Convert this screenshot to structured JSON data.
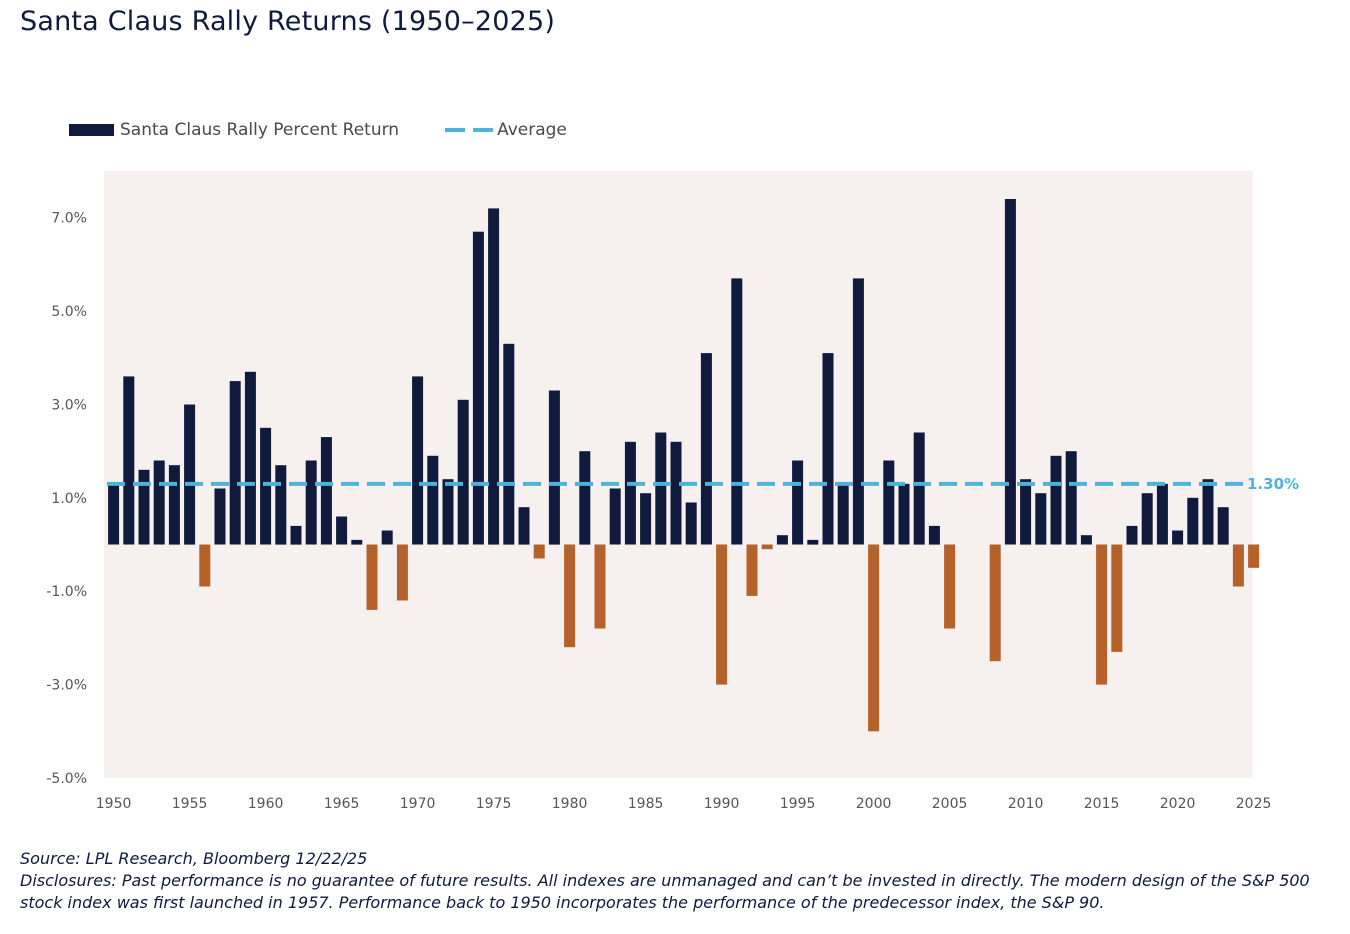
{
  "title": "Santa Claus Rally Returns (1950–2025)",
  "legend": {
    "bars": "Santa Claus Rally Percent Return",
    "average": "Average"
  },
  "colors": {
    "positive": "#0f1a3d",
    "negative": "#b5612a",
    "average": "#4fb3d9",
    "plot_bg": "#f6f0ef"
  },
  "chart_data": {
    "type": "bar",
    "title": "Santa Claus Rally Returns (1950–2025)",
    "x": [
      1950,
      1951,
      1952,
      1953,
      1954,
      1955,
      1956,
      1957,
      1958,
      1959,
      1960,
      1961,
      1962,
      1963,
      1964,
      1965,
      1966,
      1967,
      1968,
      1969,
      1970,
      1971,
      1972,
      1973,
      1974,
      1975,
      1976,
      1977,
      1978,
      1979,
      1980,
      1981,
      1982,
      1983,
      1984,
      1985,
      1986,
      1987,
      1988,
      1989,
      1990,
      1991,
      1992,
      1993,
      1994,
      1995,
      1996,
      1997,
      1998,
      1999,
      2000,
      2001,
      2002,
      2003,
      2004,
      2005,
      2006,
      2007,
      2008,
      2009,
      2010,
      2011,
      2012,
      2013,
      2014,
      2015,
      2016,
      2017,
      2018,
      2019,
      2020,
      2021,
      2022,
      2023,
      2024,
      2025
    ],
    "series": [
      {
        "name": "Santa Claus Rally Percent Return",
        "values": [
          1.3,
          3.6,
          1.6,
          1.8,
          1.7,
          3.0,
          -0.9,
          1.2,
          3.5,
          3.7,
          2.5,
          1.7,
          0.4,
          1.8,
          2.3,
          0.6,
          0.1,
          -1.4,
          0.3,
          -1.2,
          3.6,
          1.9,
          1.4,
          3.1,
          6.7,
          7.2,
          4.3,
          0.8,
          -0.3,
          3.3,
          -2.2,
          2.0,
          -1.8,
          1.2,
          2.2,
          1.1,
          2.4,
          2.2,
          0.9,
          4.1,
          -3.0,
          5.7,
          -1.1,
          -0.1,
          0.2,
          1.8,
          0.1,
          4.1,
          1.3,
          5.7,
          -4.0,
          1.8,
          1.3,
          2.4,
          0.4,
          -1.8,
          0.0,
          0.0,
          -2.5,
          7.4,
          1.4,
          1.1,
          1.9,
          2.0,
          0.2,
          -3.0,
          -2.3,
          0.4,
          1.1,
          1.3,
          0.3,
          1.0,
          1.4,
          0.8,
          -0.9,
          -0.5
        ]
      }
    ],
    "average": 1.3,
    "average_label": "1.30%",
    "ylim": [
      -5.0,
      8.0
    ],
    "yticks": [
      -5.0,
      -3.0,
      -1.0,
      1.0,
      3.0,
      5.0,
      7.0
    ],
    "ytick_labels": [
      "-5.0%",
      "-3.0%",
      "-1.0%",
      "1.0%",
      "3.0%",
      "5.0%",
      "7.0%"
    ],
    "xticks": [
      1950,
      1955,
      1960,
      1965,
      1970,
      1975,
      1980,
      1985,
      1990,
      1995,
      2000,
      2005,
      2010,
      2015,
      2020,
      2025
    ],
    "xtick_labels": [
      "1950",
      "1955",
      "1960",
      "1965",
      "1970",
      "1975",
      "1980",
      "1985",
      "1990",
      "1995",
      "2000",
      "2005",
      "2010",
      "2015",
      "2020",
      "2025"
    ],
    "legend_position": "top-left",
    "grid": false
  },
  "footer": {
    "source": "Source: LPL Research, Bloomberg 12/22/25",
    "disclosure": "Disclosures: Past performance is no guarantee of future results. All indexes are unmanaged and can’t be invested in directly. The modern design of the S&P 500 stock index was first launched in 1957. Performance back to 1950 incorporates the performance of the predecessor index, the S&P 90."
  }
}
